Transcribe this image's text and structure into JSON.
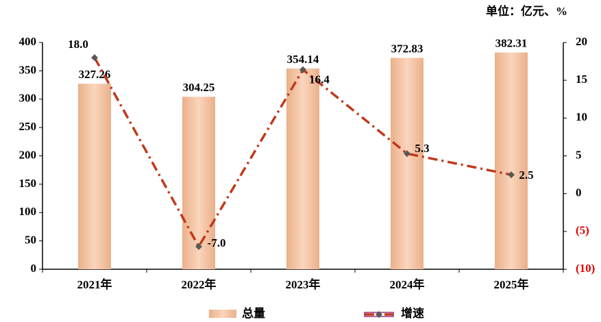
{
  "chart_data": {
    "type": "bar",
    "annotation": "单位：亿元、%",
    "categories": [
      "2021年",
      "2022年",
      "2023年",
      "2024年",
      "2025年"
    ],
    "series": [
      {
        "name": "总量",
        "color": "#f6c7a6",
        "values": [
          327.26,
          304.25,
          354.14,
          372.83,
          382.31
        ]
      },
      {
        "name": "增速",
        "type": "line",
        "axis": "y2",
        "color": "#c0391b",
        "marker_color": "#595959",
        "values": [
          18.0,
          -7.0,
          16.4,
          5.3,
          2.5
        ],
        "value_labels": [
          "18.0",
          "-7.0",
          "16.4",
          "5.3",
          "2.5"
        ]
      }
    ],
    "ylim": [
      0,
      400
    ],
    "yticks": [
      0,
      50,
      100,
      150,
      200,
      250,
      300,
      350,
      400
    ],
    "y2lim": [
      -10,
      20
    ],
    "y2ticks": [
      {
        "value": -10,
        "label": "(10)"
      },
      {
        "value": -5,
        "label": "(5)"
      },
      0,
      5,
      10,
      15,
      20
    ],
    "negative_tick_color": "#e00000",
    "grid": false,
    "legend": "bottom"
  }
}
